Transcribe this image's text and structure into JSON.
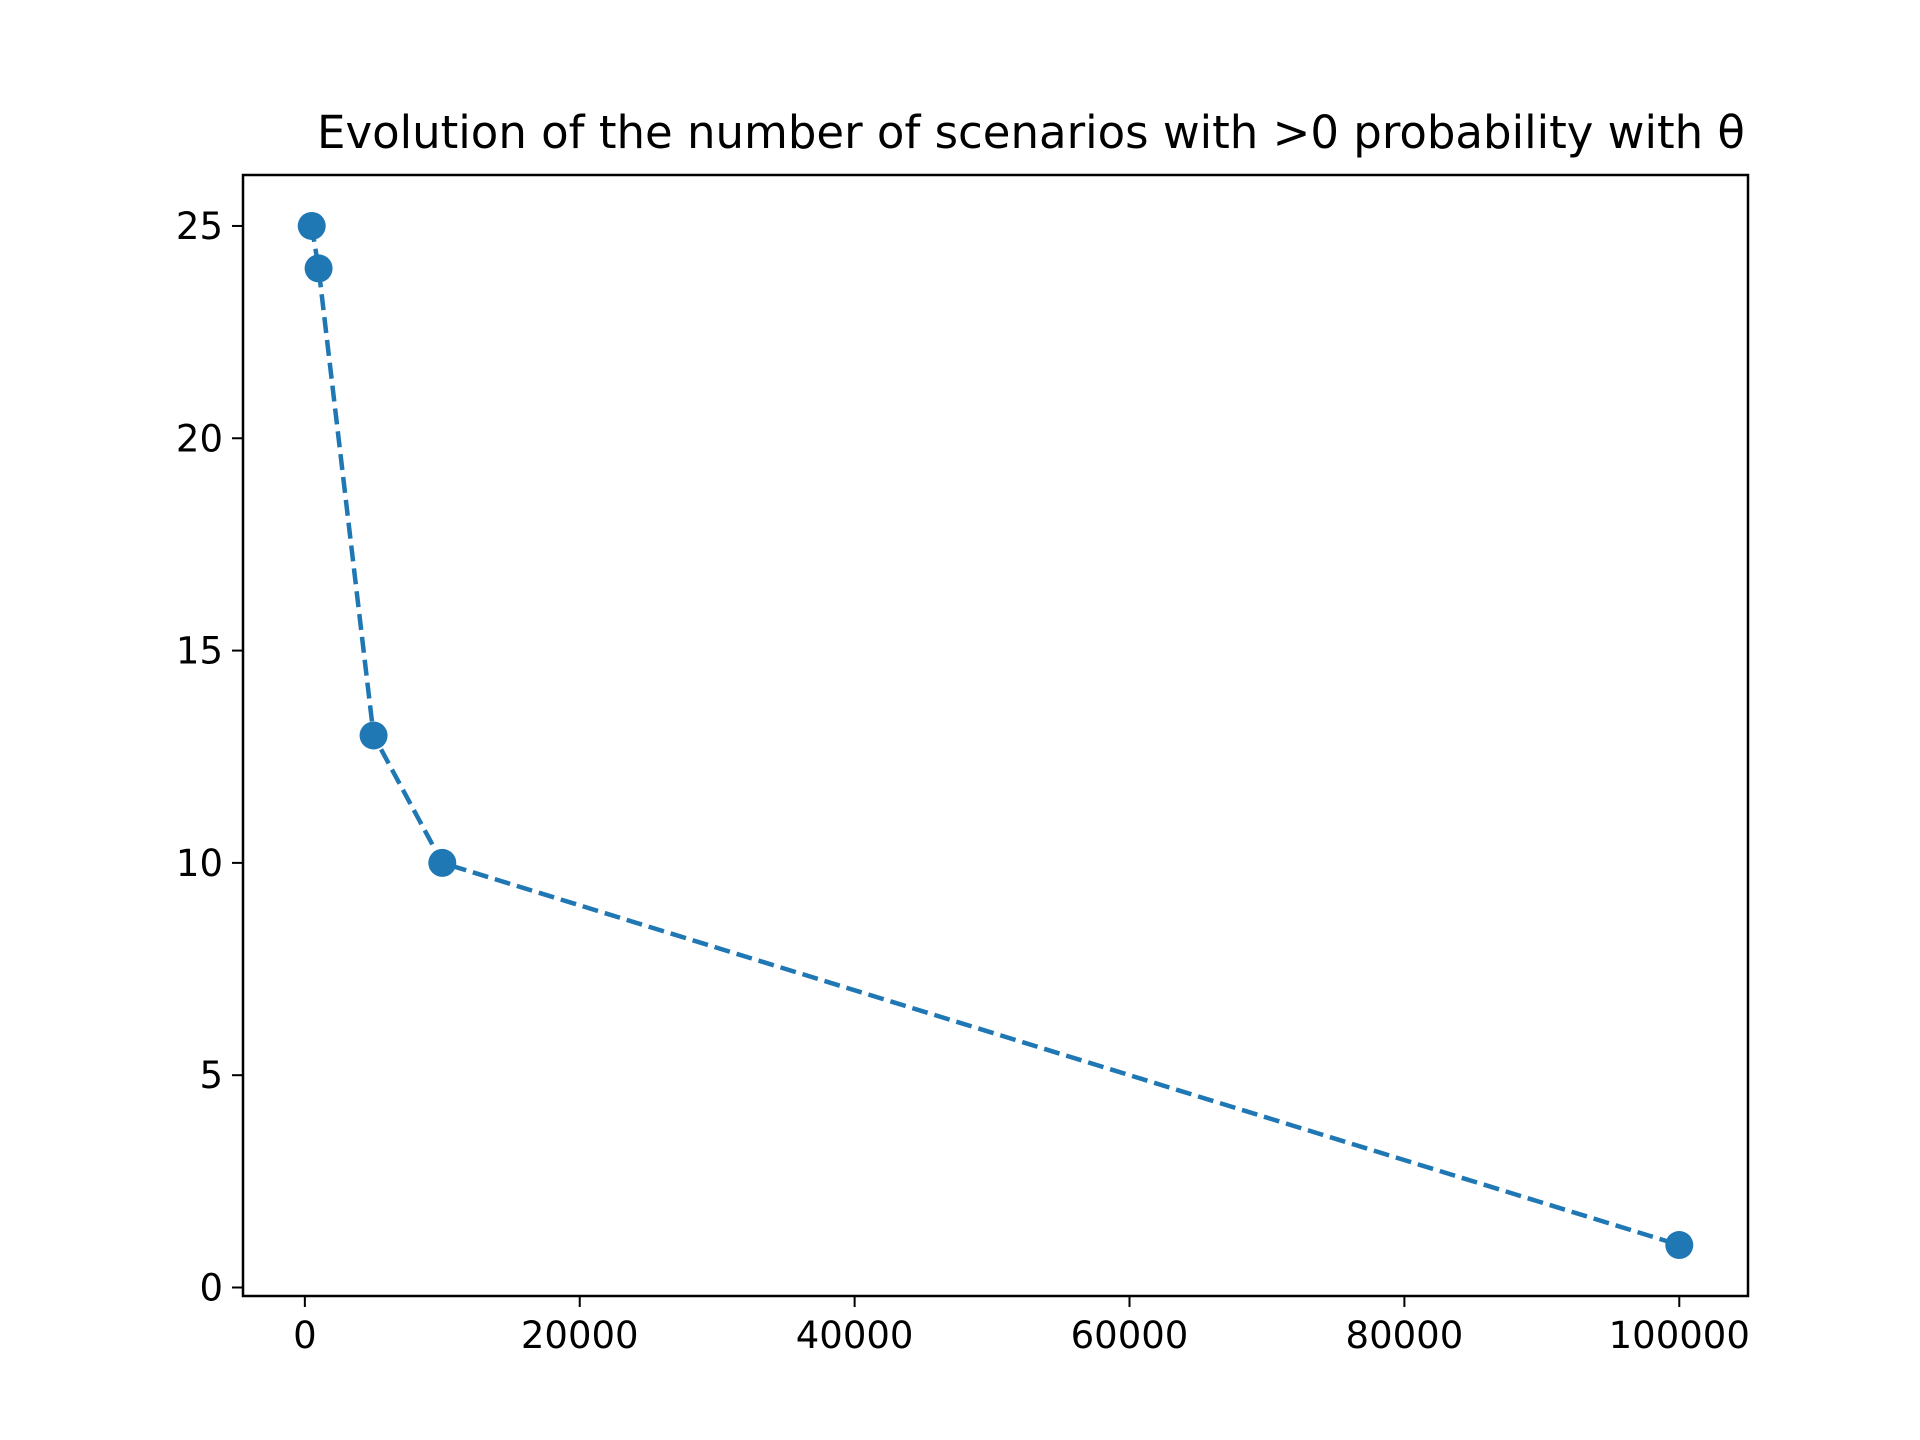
{
  "chart_data": {
    "type": "line",
    "title": "Evolution of the number of scenarios with >0 probability with θ",
    "xlabel": "",
    "ylabel": "",
    "x": [
      500,
      1000,
      5000,
      10000,
      100000
    ],
    "series": [
      {
        "values": [
          25,
          24,
          13,
          10,
          1
        ]
      }
    ],
    "xlim": [
      -4500,
      105000
    ],
    "ylim": [
      -0.2,
      26.2
    ],
    "xticks": [
      0,
      20000,
      40000,
      60000,
      80000,
      100000
    ],
    "xtick_labels": [
      "0",
      "20000",
      "40000",
      "60000",
      "80000",
      "100000"
    ],
    "yticks": [
      0,
      5,
      10,
      15,
      20,
      25
    ],
    "ytick_labels": [
      "0",
      "5",
      "10",
      "15",
      "20",
      "25"
    ],
    "line_style": "dashed",
    "marker": "circle",
    "color": "#1f77b4",
    "grid": false,
    "legend": "none"
  }
}
